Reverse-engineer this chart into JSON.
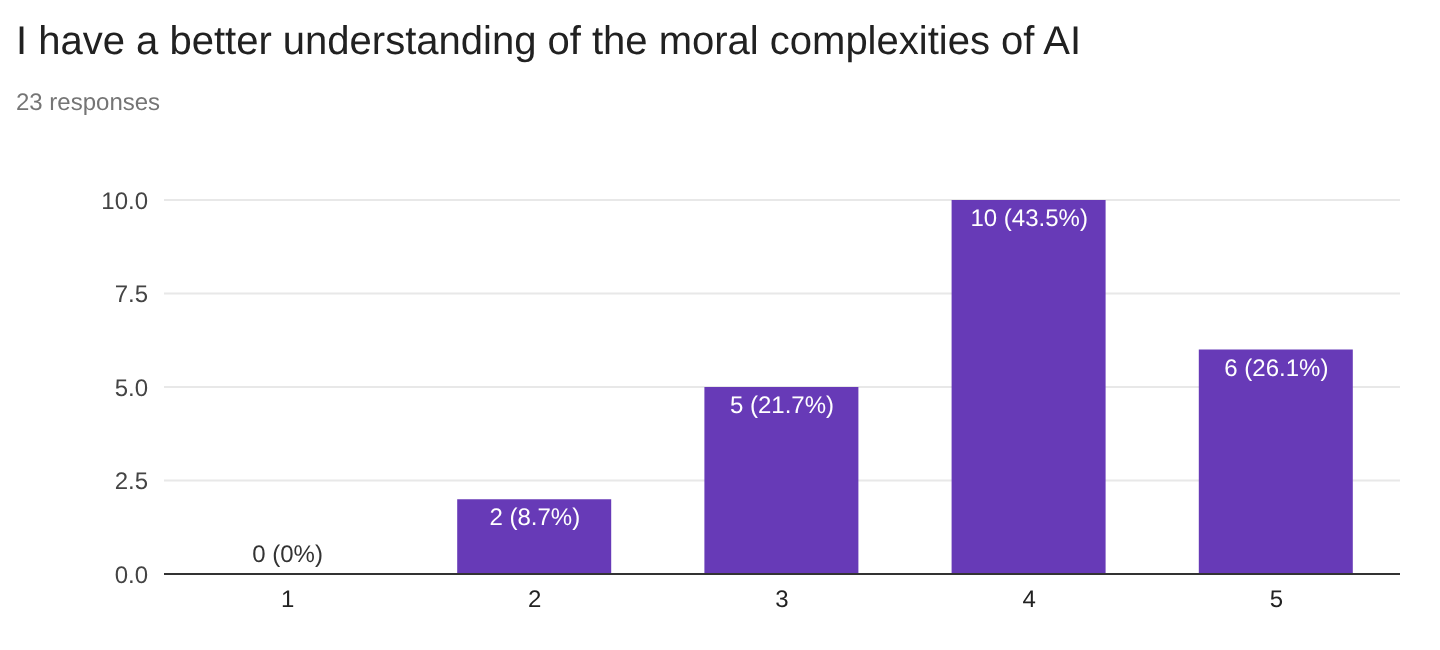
{
  "chart_data": {
    "type": "bar",
    "title": "I have a better understanding of the moral complexities of AI",
    "subtitle": "23 responses",
    "categories": [
      "1",
      "2",
      "3",
      "4",
      "5"
    ],
    "values": [
      0,
      2,
      5,
      10,
      6
    ],
    "value_labels": [
      "0 (0%)",
      "2 (8.7%)",
      "5 (21.7%)",
      "10 (43.5%)",
      "6 (26.1%)"
    ],
    "color": "#673ab7",
    "ylim": [
      0,
      10
    ],
    "yticks": [
      {
        "value": 0,
        "label": "0.0"
      },
      {
        "value": 2.5,
        "label": "2.5"
      },
      {
        "value": 5,
        "label": "5.0"
      },
      {
        "value": 7.5,
        "label": "7.5"
      },
      {
        "value": 10,
        "label": "10.0"
      }
    ],
    "grid": "y"
  }
}
